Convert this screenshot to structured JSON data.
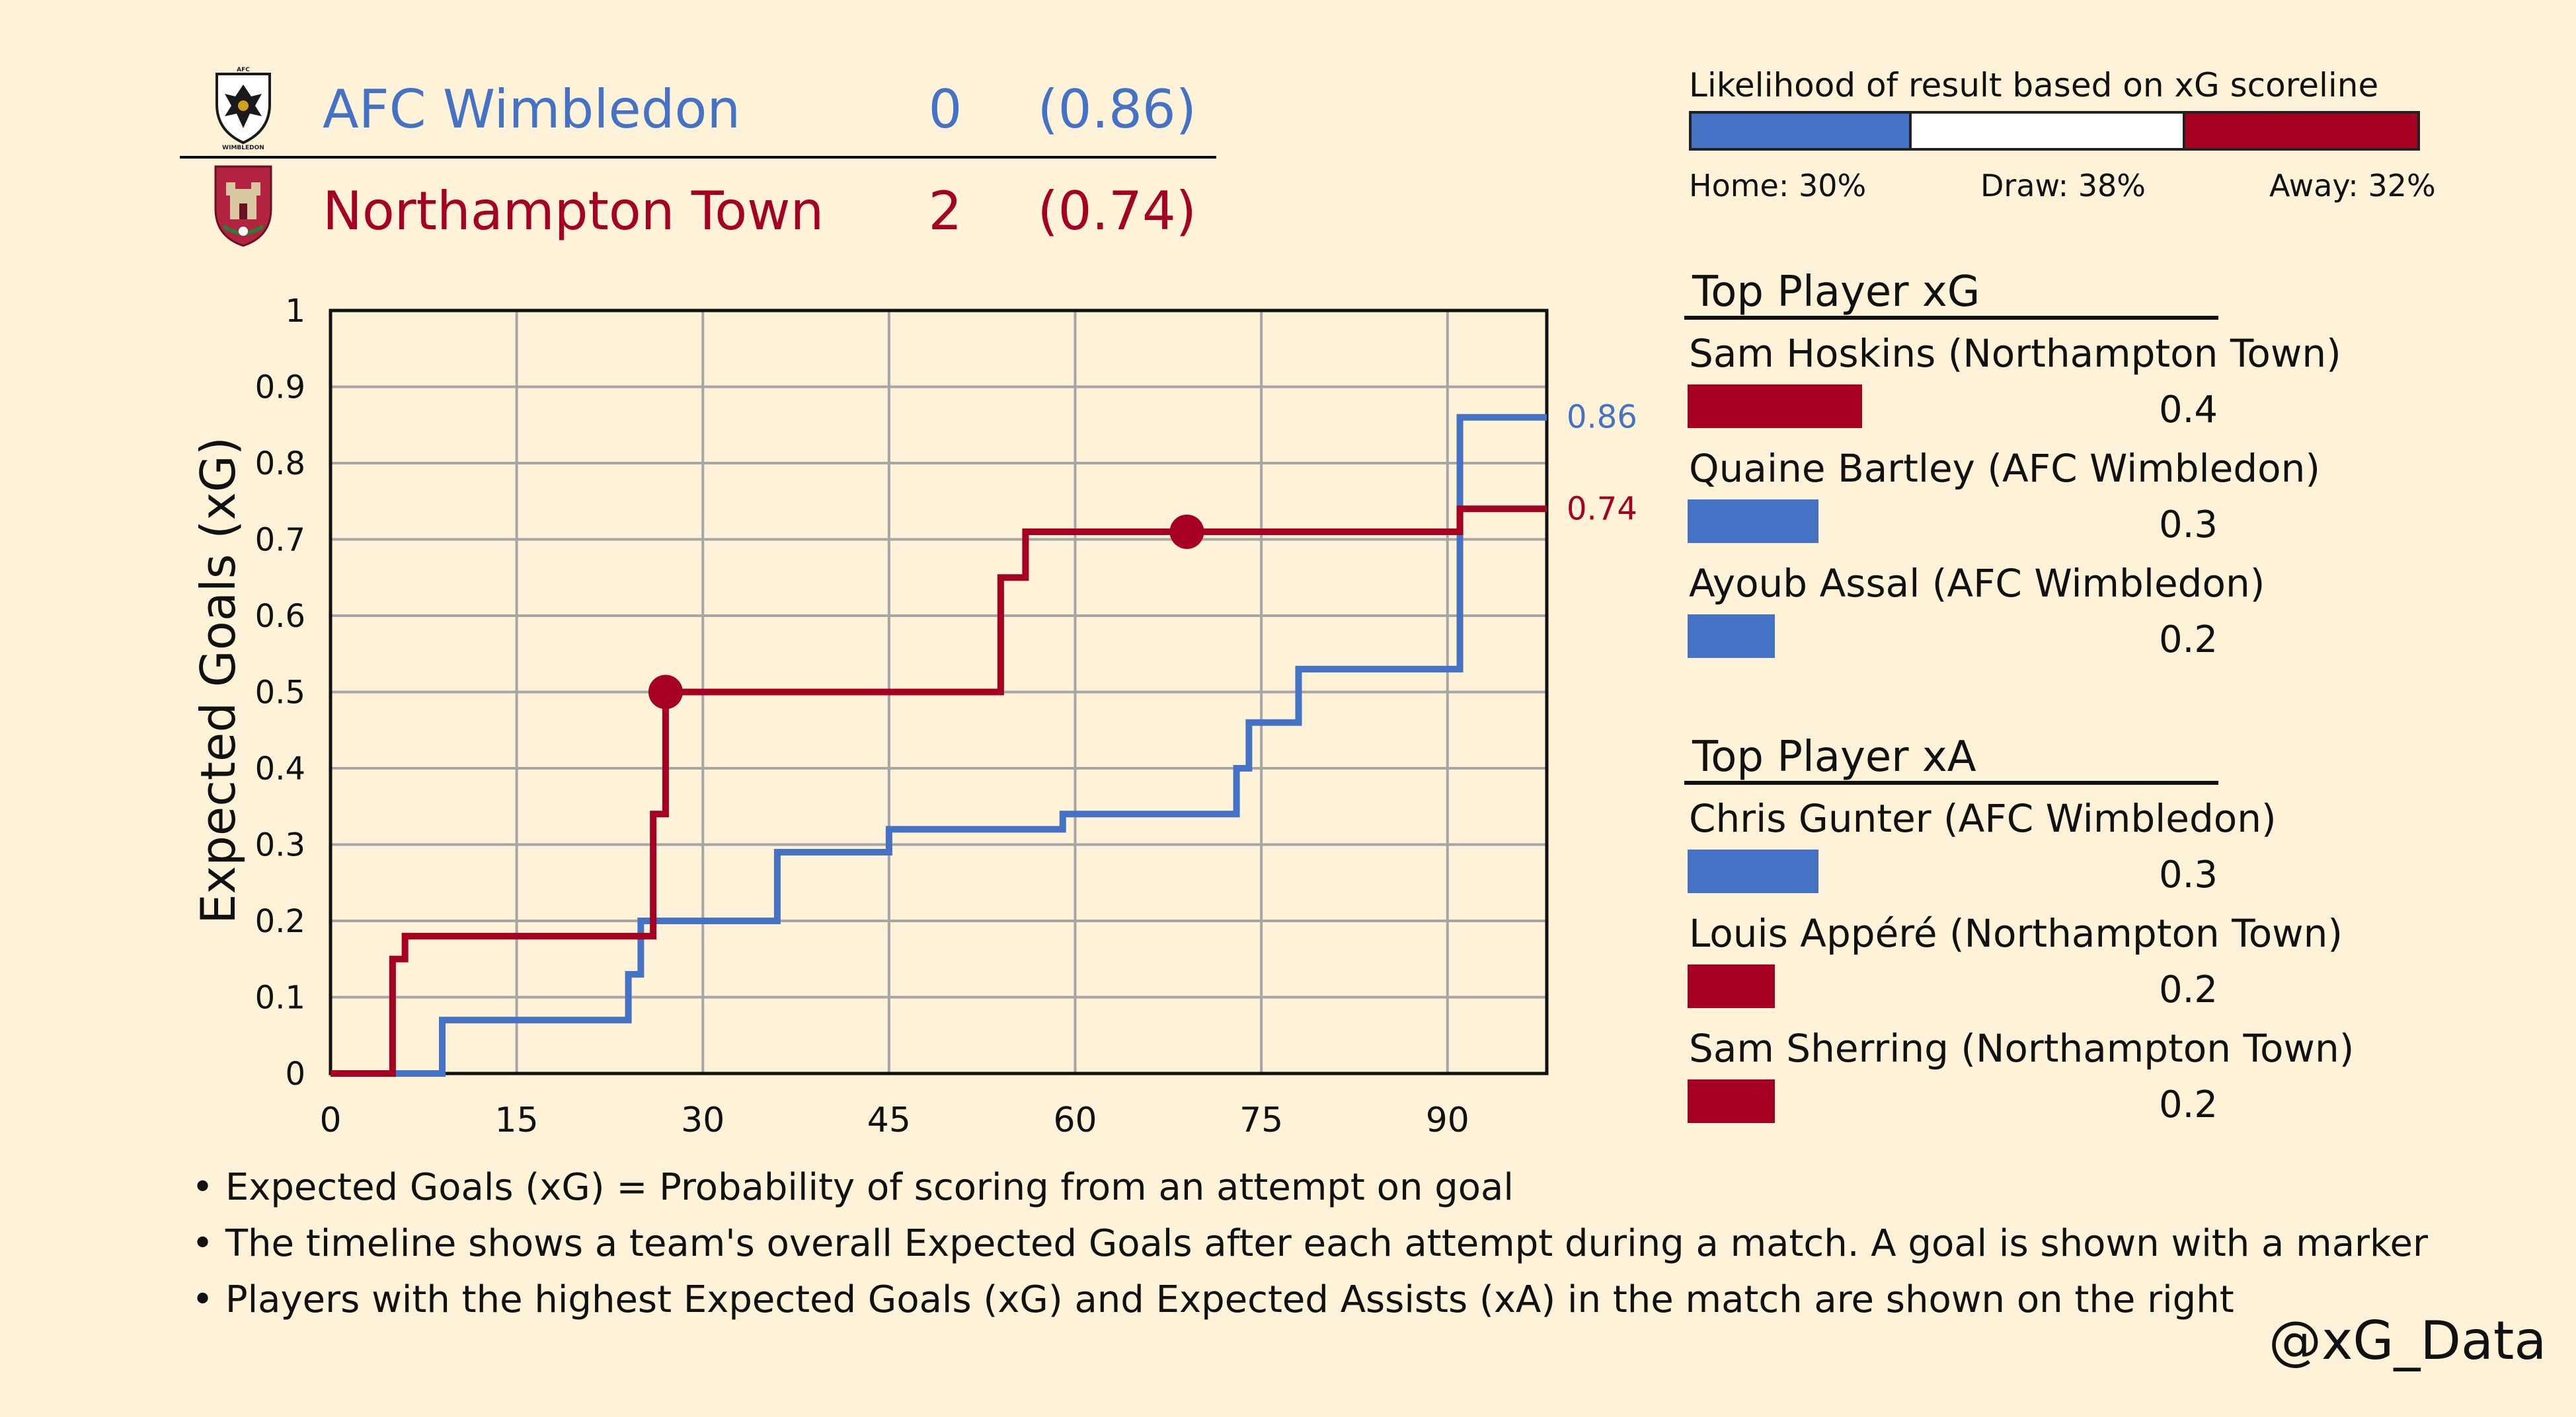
{
  "header": {
    "home": {
      "name": "AFC Wimbledon",
      "score": "0",
      "xg": "(0.86)",
      "color": "#4472c4",
      "crest_icon": "afc-wimbledon-crest-icon"
    },
    "away": {
      "name": "Northampton Town",
      "score": "2",
      "xg": "(0.74)",
      "color": "#a50021",
      "crest_icon": "northampton-town-crest-icon"
    }
  },
  "likelihood": {
    "title": "Likelihood of result based on xG scoreline",
    "home_pct": 30,
    "draw_pct": 38,
    "away_pct": 32,
    "home_label": "Home: 30%",
    "draw_label": "Draw: 38%",
    "away_label": "Away: 32%"
  },
  "top_xg": {
    "title": "Top Player xG",
    "players": [
      {
        "name": "Sam Hoskins (Northampton Town)",
        "value": 0.4,
        "value_label": "0.4",
        "team": "away"
      },
      {
        "name": "Quaine Bartley (AFC Wimbledon)",
        "value": 0.3,
        "value_label": "0.3",
        "team": "home"
      },
      {
        "name": "Ayoub Assal (AFC Wimbledon)",
        "value": 0.2,
        "value_label": "0.2",
        "team": "home"
      }
    ]
  },
  "top_xa": {
    "title": "Top Player xA",
    "players": [
      {
        "name": "Chris Gunter (AFC Wimbledon)",
        "value": 0.3,
        "value_label": "0.3",
        "team": "home"
      },
      {
        "name": "Louis Appéré (Northampton Town)",
        "value": 0.2,
        "value_label": "0.2",
        "team": "away"
      },
      {
        "name": "Sam Sherring (Northampton Town)",
        "value": 0.2,
        "value_label": "0.2",
        "team": "away"
      }
    ]
  },
  "notes": [
    "• Expected Goals (xG) = Probability of scoring from an attempt on goal",
    "• The timeline shows a team's overall Expected Goals after each attempt during a match. A goal is shown with a marker",
    "• Players with the highest Expected Goals (xG) and Expected Assists (xA) in the match are shown on the right"
  ],
  "handle": "@xG_Data",
  "chart_data": {
    "type": "line",
    "title": "",
    "xlabel": "",
    "ylabel": "Expected Goals (xG)",
    "xlim": [
      0,
      98
    ],
    "ylim": [
      0,
      1
    ],
    "x_ticks": [
      0,
      15,
      30,
      45,
      60,
      75,
      90
    ],
    "y_ticks": [
      0,
      0.1,
      0.2,
      0.3,
      0.4,
      0.5,
      0.6,
      0.7,
      0.8,
      0.9,
      1
    ],
    "y_tick_labels": [
      "0",
      "0.1",
      "0.2",
      "0.3",
      "0.4",
      "0.5",
      "0.6",
      "0.7",
      "0.8",
      "0.9",
      "1"
    ],
    "grid": true,
    "step": true,
    "series": [
      {
        "name": "AFC Wimbledon",
        "color": "#4472c4",
        "end_label": "0.86",
        "points": [
          [
            0,
            0
          ],
          [
            9,
            0.07
          ],
          [
            24,
            0.13
          ],
          [
            25,
            0.2
          ],
          [
            36,
            0.29
          ],
          [
            45,
            0.32
          ],
          [
            59,
            0.34
          ],
          [
            73,
            0.4
          ],
          [
            74,
            0.46
          ],
          [
            78,
            0.53
          ],
          [
            91,
            0.86
          ],
          [
            98,
            0.86
          ]
        ],
        "goals": []
      },
      {
        "name": "Northampton Town",
        "color": "#a50021",
        "end_label": "0.74",
        "points": [
          [
            0,
            0
          ],
          [
            5,
            0.15
          ],
          [
            6,
            0.18
          ],
          [
            26,
            0.34
          ],
          [
            27,
            0.5
          ],
          [
            54,
            0.65
          ],
          [
            56,
            0.71
          ],
          [
            91,
            0.74
          ],
          [
            98,
            0.74
          ]
        ],
        "goals": [
          [
            27,
            0.5
          ],
          [
            69,
            0.71
          ]
        ]
      }
    ]
  }
}
